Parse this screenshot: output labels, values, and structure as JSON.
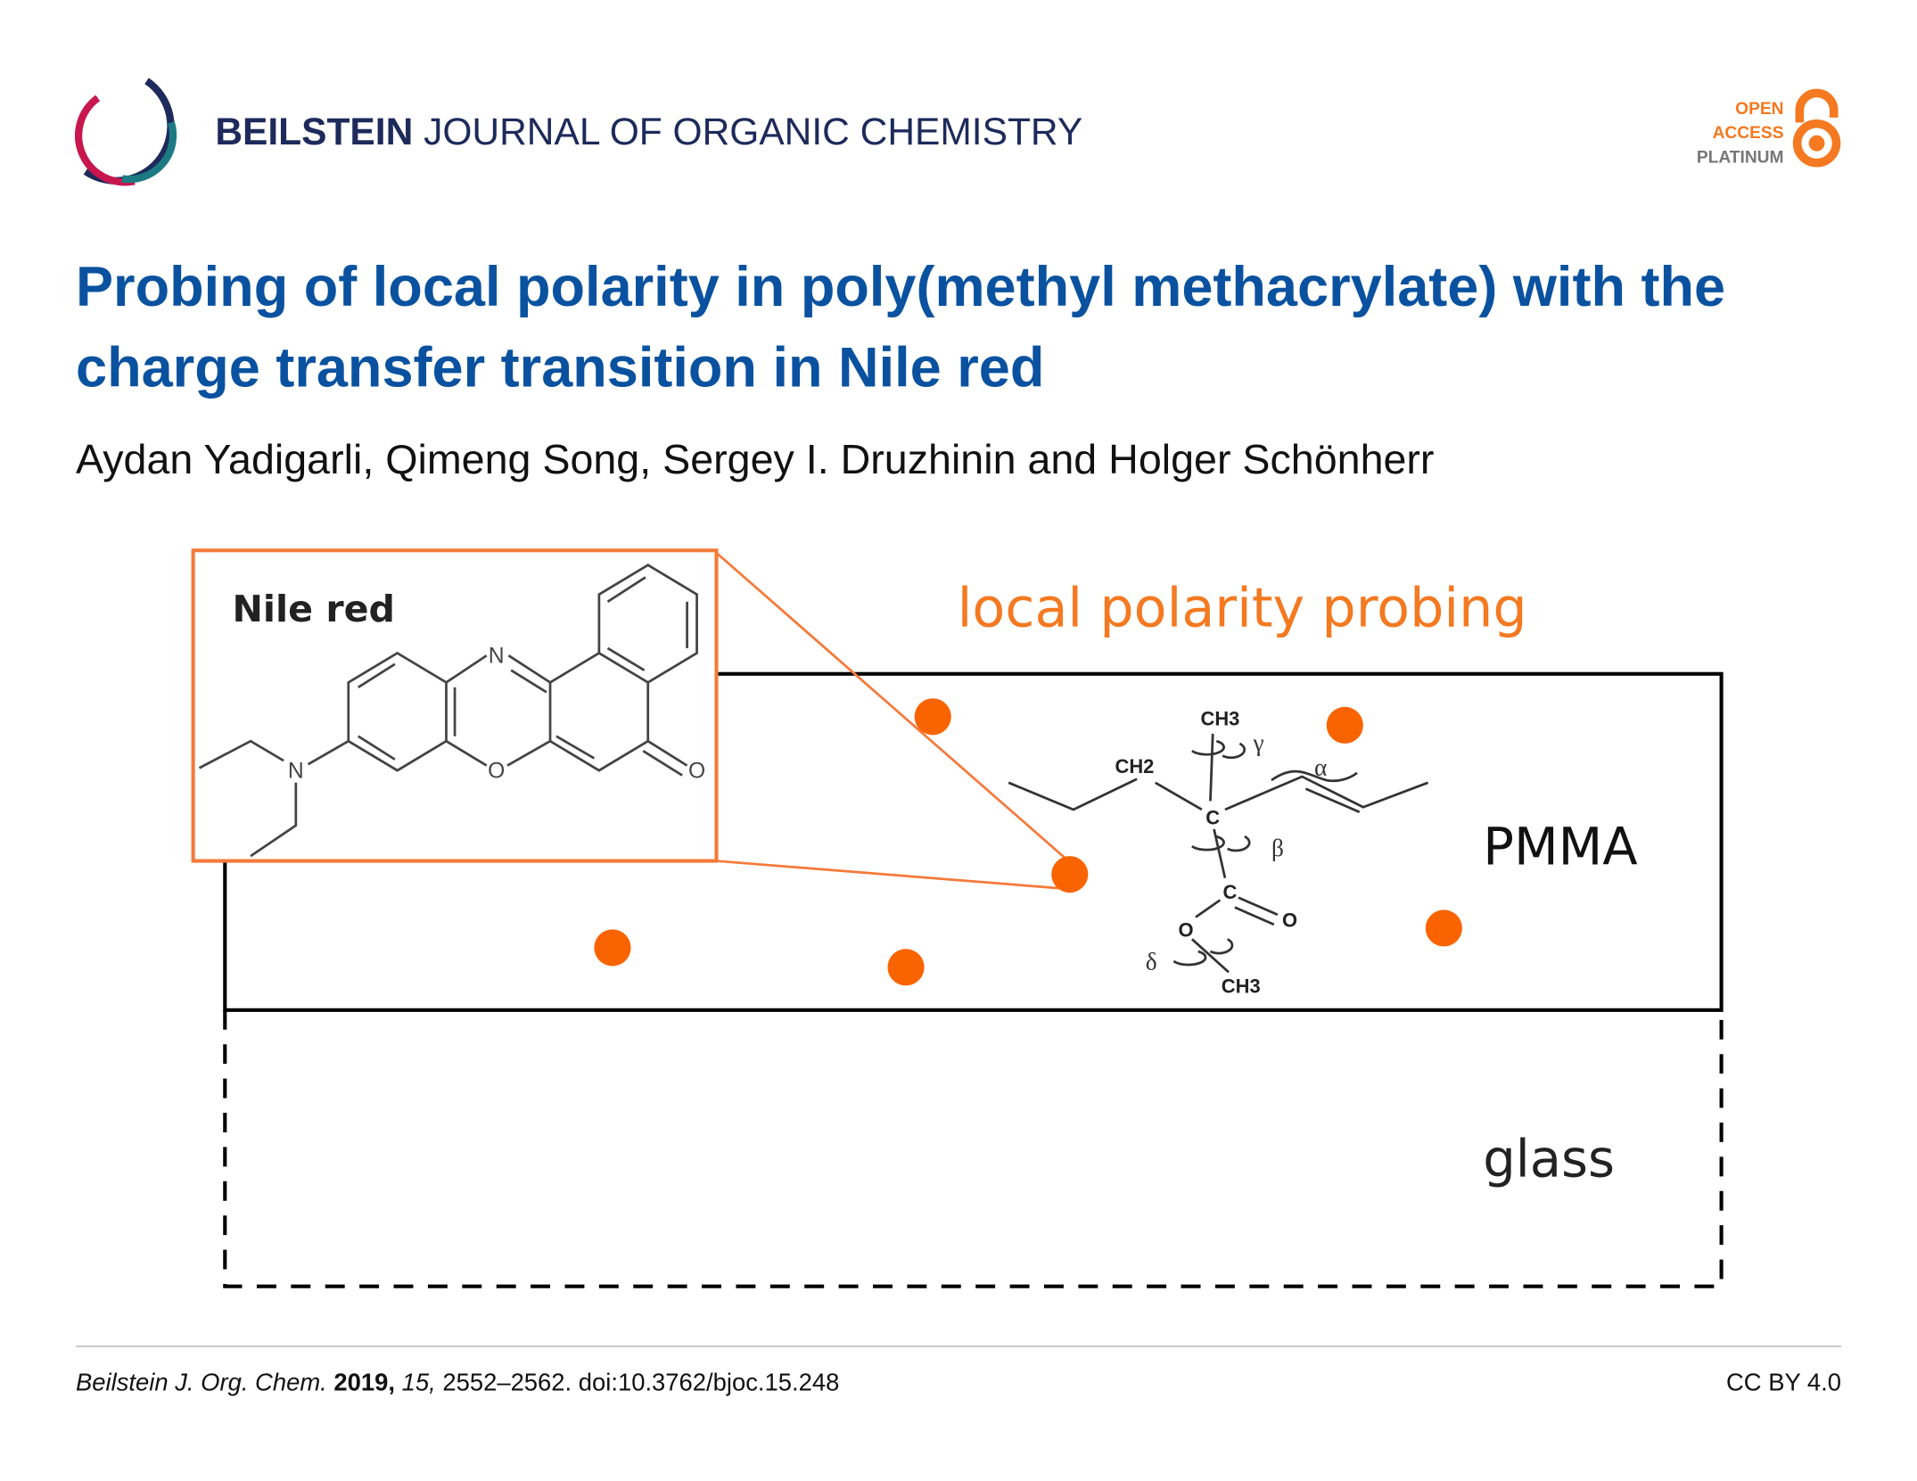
{
  "header": {
    "journal_bold": "BEILSTEIN",
    "journal_rest": "JOURNAL OF ORGANIC CHEMISTRY",
    "badge": {
      "line1": "OPEN",
      "line2": "ACCESS",
      "line3": "PLATINUM"
    }
  },
  "article": {
    "title_line1": "Probing of local polarity in poly(methyl methacrylate) with the",
    "title_line2": "charge transfer transition in Nile red",
    "authors": "Aydan Yadigarli, Qimeng Song, Sergey I. Druzhinin and Holger Schönherr"
  },
  "figure": {
    "inset_label": "Nile red",
    "heading": "local polarity probing",
    "layer_top": "PMMA",
    "layer_bottom": "glass",
    "atoms": {
      "n_ring": "N",
      "o_ring": "O",
      "o_keto": "O",
      "n_amine": "N"
    },
    "pmma_labels": {
      "ch3_top": "CH3",
      "ch2": "CH2",
      "c_main": "C",
      "c_ester": "C",
      "o_ester": "O",
      "o_carbonyl": "O",
      "ch3_bottom": "CH3",
      "alpha": "α",
      "beta": "β",
      "gamma": "γ",
      "delta": "δ"
    }
  },
  "footer": {
    "journal": "Beilstein J. Org. Chem.",
    "year": "2019,",
    "volume": "15,",
    "pages_doi": "2552–2562. doi:10.3762/bjoc.15.248",
    "license": "CC BY 4.0"
  },
  "colors": {
    "title": "#0a52a0",
    "journal": "#1d2a5b",
    "accent": "#f47920",
    "dot": "#fa6400"
  }
}
